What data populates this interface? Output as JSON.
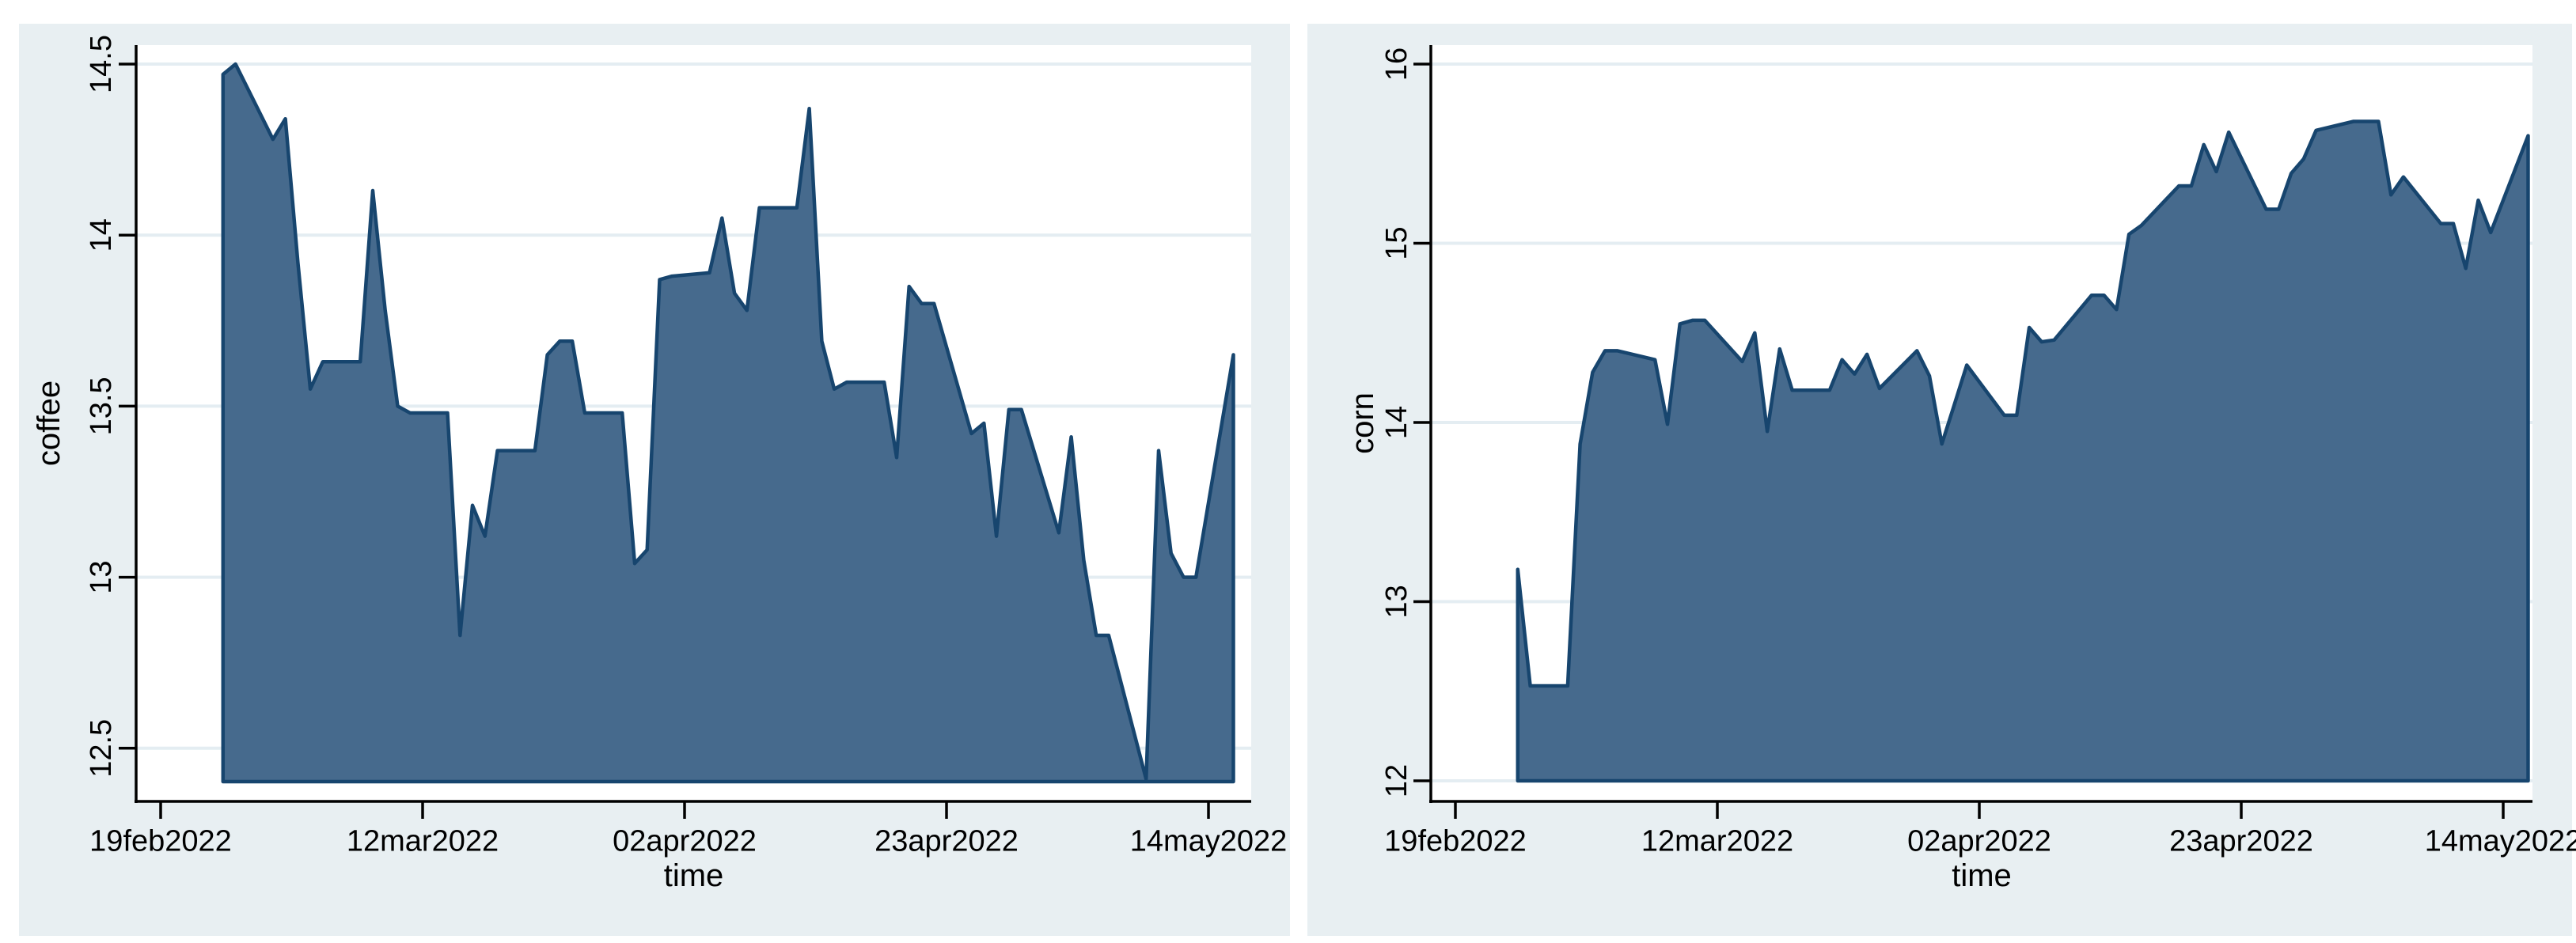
{
  "page": {
    "background": "#ffffff",
    "description": "Two Stata-style area charts side by side: daily coffee and corn price series over time"
  },
  "colors": {
    "panel_background": "#e8eff2",
    "plot_background": "#ffffff",
    "gridline": "#e4edf2",
    "area_fill": "#466a8d",
    "area_outline": "#17456e",
    "axis": "#000000",
    "text": "#000000"
  },
  "chart_data": [
    {
      "type": "area",
      "panel": "left",
      "title": "",
      "ylabel": "coffee",
      "xlabel": "time",
      "ylim": [
        12.4,
        14.52
      ],
      "xlim_dates": [
        "2022-02-19",
        "2022-05-17"
      ],
      "grid": true,
      "legend": "none",
      "y_ticks": [
        {
          "value": 12.5,
          "label": "12.5"
        },
        {
          "value": 13,
          "label": "13"
        },
        {
          "value": 13.5,
          "label": "13.5"
        },
        {
          "value": 14,
          "label": "14"
        },
        {
          "value": 14.5,
          "label": "14.5"
        }
      ],
      "x_ticks": [
        {
          "date": "2022-02-19",
          "label": "19feb2022"
        },
        {
          "date": "2022-03-12",
          "label": "12mar2022"
        },
        {
          "date": "2022-04-02",
          "label": "02apr2022"
        },
        {
          "date": "2022-04-23",
          "label": "23apr2022"
        },
        {
          "date": "2022-05-14",
          "label": "14may2022"
        }
      ],
      "series": [
        {
          "name": "coffee",
          "points": [
            [
              "2022-02-24",
              14.47
            ],
            [
              "2022-02-25",
              14.5
            ],
            [
              "2022-02-28",
              14.28
            ],
            [
              "2022-03-01",
              14.34
            ],
            [
              "2022-03-02",
              13.92
            ],
            [
              "2022-03-03",
              13.55
            ],
            [
              "2022-03-04",
              13.63
            ],
            [
              "2022-03-07",
              13.63
            ],
            [
              "2022-03-08",
              14.13
            ],
            [
              "2022-03-09",
              13.78
            ],
            [
              "2022-03-10",
              13.5
            ],
            [
              "2022-03-11",
              13.48
            ],
            [
              "2022-03-14",
              13.48
            ],
            [
              "2022-03-15",
              12.83
            ],
            [
              "2022-03-16",
              13.21
            ],
            [
              "2022-03-17",
              13.12
            ],
            [
              "2022-03-18",
              13.37
            ],
            [
              "2022-03-21",
              13.37
            ],
            [
              "2022-03-22",
              13.65
            ],
            [
              "2022-03-23",
              13.69
            ],
            [
              "2022-03-24",
              13.69
            ],
            [
              "2022-03-25",
              13.48
            ],
            [
              "2022-03-28",
              13.48
            ],
            [
              "2022-03-29",
              13.04
            ],
            [
              "2022-03-30",
              13.08
            ],
            [
              "2022-03-31",
              13.87
            ],
            [
              "2022-04-01",
              13.88
            ],
            [
              "2022-04-04",
              13.89
            ],
            [
              "2022-04-05",
              14.05
            ],
            [
              "2022-04-06",
              13.83
            ],
            [
              "2022-04-07",
              13.78
            ],
            [
              "2022-04-08",
              14.08
            ],
            [
              "2022-04-11",
              14.08
            ],
            [
              "2022-04-12",
              14.37
            ],
            [
              "2022-04-13",
              13.69
            ],
            [
              "2022-04-14",
              13.55
            ],
            [
              "2022-04-15",
              13.57
            ],
            [
              "2022-04-18",
              13.57
            ],
            [
              "2022-04-19",
              13.35
            ],
            [
              "2022-04-20",
              13.85
            ],
            [
              "2022-04-21",
              13.8
            ],
            [
              "2022-04-22",
              13.8
            ],
            [
              "2022-04-25",
              13.42
            ],
            [
              "2022-04-26",
              13.45
            ],
            [
              "2022-04-27",
              13.12
            ],
            [
              "2022-04-28",
              13.49
            ],
            [
              "2022-04-29",
              13.49
            ],
            [
              "2022-05-02",
              13.13
            ],
            [
              "2022-05-03",
              13.41
            ],
            [
              "2022-05-04",
              13.05
            ],
            [
              "2022-05-05",
              12.83
            ],
            [
              "2022-05-06",
              12.83
            ],
            [
              "2022-05-09",
              12.41
            ],
            [
              "2022-05-10",
              13.37
            ],
            [
              "2022-05-11",
              13.07
            ],
            [
              "2022-05-12",
              13.0
            ],
            [
              "2022-05-13",
              13.0
            ],
            [
              "2022-05-16",
              13.65
            ]
          ]
        }
      ]
    },
    {
      "type": "area",
      "panel": "right",
      "title": "",
      "ylabel": "corn",
      "xlabel": "time",
      "ylim": [
        12,
        16.1
      ],
      "xlim_dates": [
        "2022-02-19",
        "2022-05-17"
      ],
      "grid": true,
      "legend": "none",
      "y_ticks": [
        {
          "value": 12,
          "label": "12"
        },
        {
          "value": 13,
          "label": "13"
        },
        {
          "value": 14,
          "label": "14"
        },
        {
          "value": 15,
          "label": "15"
        },
        {
          "value": 16,
          "label": "16"
        }
      ],
      "x_ticks": [
        {
          "date": "2022-02-19",
          "label": "19feb2022"
        },
        {
          "date": "2022-03-12",
          "label": "12mar2022"
        },
        {
          "date": "2022-04-02",
          "label": "02apr2022"
        },
        {
          "date": "2022-04-23",
          "label": "23apr2022"
        },
        {
          "date": "2022-05-14",
          "label": "14may2022"
        }
      ],
      "series": [
        {
          "name": "corn",
          "points": [
            [
              "2022-02-24",
              13.18
            ],
            [
              "2022-02-25",
              12.53
            ],
            [
              "2022-02-28",
              12.53
            ],
            [
              "2022-03-01",
              13.88
            ],
            [
              "2022-03-02",
              14.28
            ],
            [
              "2022-03-03",
              14.4
            ],
            [
              "2022-03-04",
              14.4
            ],
            [
              "2022-03-07",
              14.35
            ],
            [
              "2022-03-08",
              13.99
            ],
            [
              "2022-03-09",
              14.55
            ],
            [
              "2022-03-10",
              14.57
            ],
            [
              "2022-03-11",
              14.57
            ],
            [
              "2022-03-14",
              14.34
            ],
            [
              "2022-03-15",
              14.5
            ],
            [
              "2022-03-16",
              13.95
            ],
            [
              "2022-03-17",
              14.41
            ],
            [
              "2022-03-18",
              14.18
            ],
            [
              "2022-03-21",
              14.18
            ],
            [
              "2022-03-22",
              14.35
            ],
            [
              "2022-03-23",
              14.27
            ],
            [
              "2022-03-24",
              14.38
            ],
            [
              "2022-03-25",
              14.19
            ],
            [
              "2022-03-28",
              14.4
            ],
            [
              "2022-03-29",
              14.26
            ],
            [
              "2022-03-30",
              13.88
            ],
            [
              "2022-03-31",
              14.1
            ],
            [
              "2022-04-01",
              14.32
            ],
            [
              "2022-04-04",
              14.04
            ],
            [
              "2022-04-05",
              14.04
            ],
            [
              "2022-04-06",
              14.53
            ],
            [
              "2022-04-07",
              14.45
            ],
            [
              "2022-04-08",
              14.46
            ],
            [
              "2022-04-11",
              14.71
            ],
            [
              "2022-04-12",
              14.71
            ],
            [
              "2022-04-13",
              14.63
            ],
            [
              "2022-04-14",
              15.05
            ],
            [
              "2022-04-15",
              15.1
            ],
            [
              "2022-04-18",
              15.32
            ],
            [
              "2022-04-19",
              15.32
            ],
            [
              "2022-04-20",
              15.55
            ],
            [
              "2022-04-21",
              15.4
            ],
            [
              "2022-04-22",
              15.62
            ],
            [
              "2022-04-25",
              15.19
            ],
            [
              "2022-04-26",
              15.19
            ],
            [
              "2022-04-27",
              15.39
            ],
            [
              "2022-04-28",
              15.47
            ],
            [
              "2022-04-29",
              15.63
            ],
            [
              "2022-05-02",
              15.68
            ],
            [
              "2022-05-03",
              15.68
            ],
            [
              "2022-05-04",
              15.68
            ],
            [
              "2022-05-05",
              15.27
            ],
            [
              "2022-05-06",
              15.37
            ],
            [
              "2022-05-09",
              15.11
            ],
            [
              "2022-05-10",
              15.11
            ],
            [
              "2022-05-11",
              14.86
            ],
            [
              "2022-05-12",
              15.24
            ],
            [
              "2022-05-13",
              15.06
            ],
            [
              "2022-05-16",
              15.6
            ]
          ]
        }
      ]
    }
  ]
}
